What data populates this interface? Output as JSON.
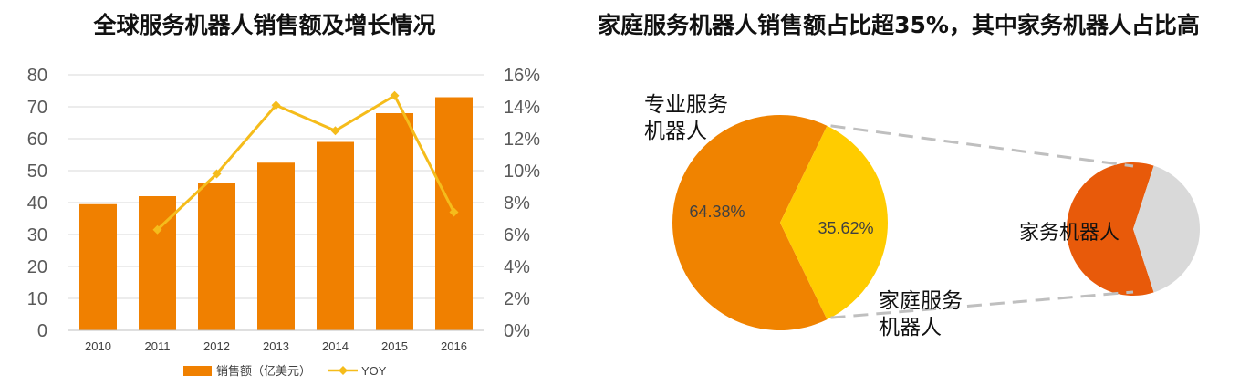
{
  "colors": {
    "bar": "#F08000",
    "line": "#F5BC1B",
    "pie_professional": "#F08300",
    "pie_home": "#FFCC00",
    "pie2_housework": "#E85A0A",
    "pie2_other": "#D9D9D9",
    "connector": "#BFBFBF",
    "grid": "#D9D9D9"
  },
  "chart_data": [
    {
      "type": "bar",
      "title": "全球服务机器人销售额及增长情况",
      "categories": [
        "2010",
        "2011",
        "2012",
        "2013",
        "2014",
        "2015",
        "2016"
      ],
      "y_ticks": [
        "0",
        "10",
        "20",
        "30",
        "40",
        "50",
        "60",
        "70",
        "80"
      ],
      "y2_ticks": [
        "0%",
        "2%",
        "4%",
        "6%",
        "8%",
        "10%",
        "12%",
        "14%",
        "16%"
      ],
      "ylim": [
        0,
        80
      ],
      "y2lim": [
        0,
        16
      ],
      "grid": true,
      "legend_position": "bottom",
      "series": [
        {
          "name": "销售额（亿美元）",
          "type": "bar",
          "axis": "left",
          "values": [
            39.5,
            42,
            46,
            52.5,
            59,
            68,
            73
          ]
        },
        {
          "name": "YOY",
          "type": "line",
          "axis": "right",
          "values": [
            null,
            6.3,
            9.8,
            14.1,
            12.5,
            14.7,
            7.4
          ]
        }
      ]
    },
    {
      "type": "pie",
      "title": "家庭服务机器人销售额占比超35%，其中家务机器人占比高",
      "slices": [
        {
          "label": "专业服务机器人",
          "value": 64.38,
          "value_label": "64.38%"
        },
        {
          "label": "家庭服务机器人",
          "value": 35.62,
          "value_label": "35.62%"
        }
      ],
      "detail_pie": {
        "slices": [
          {
            "label": "家务机器人",
            "value": 60
          },
          {
            "label": "",
            "value": 40
          }
        ]
      }
    }
  ]
}
